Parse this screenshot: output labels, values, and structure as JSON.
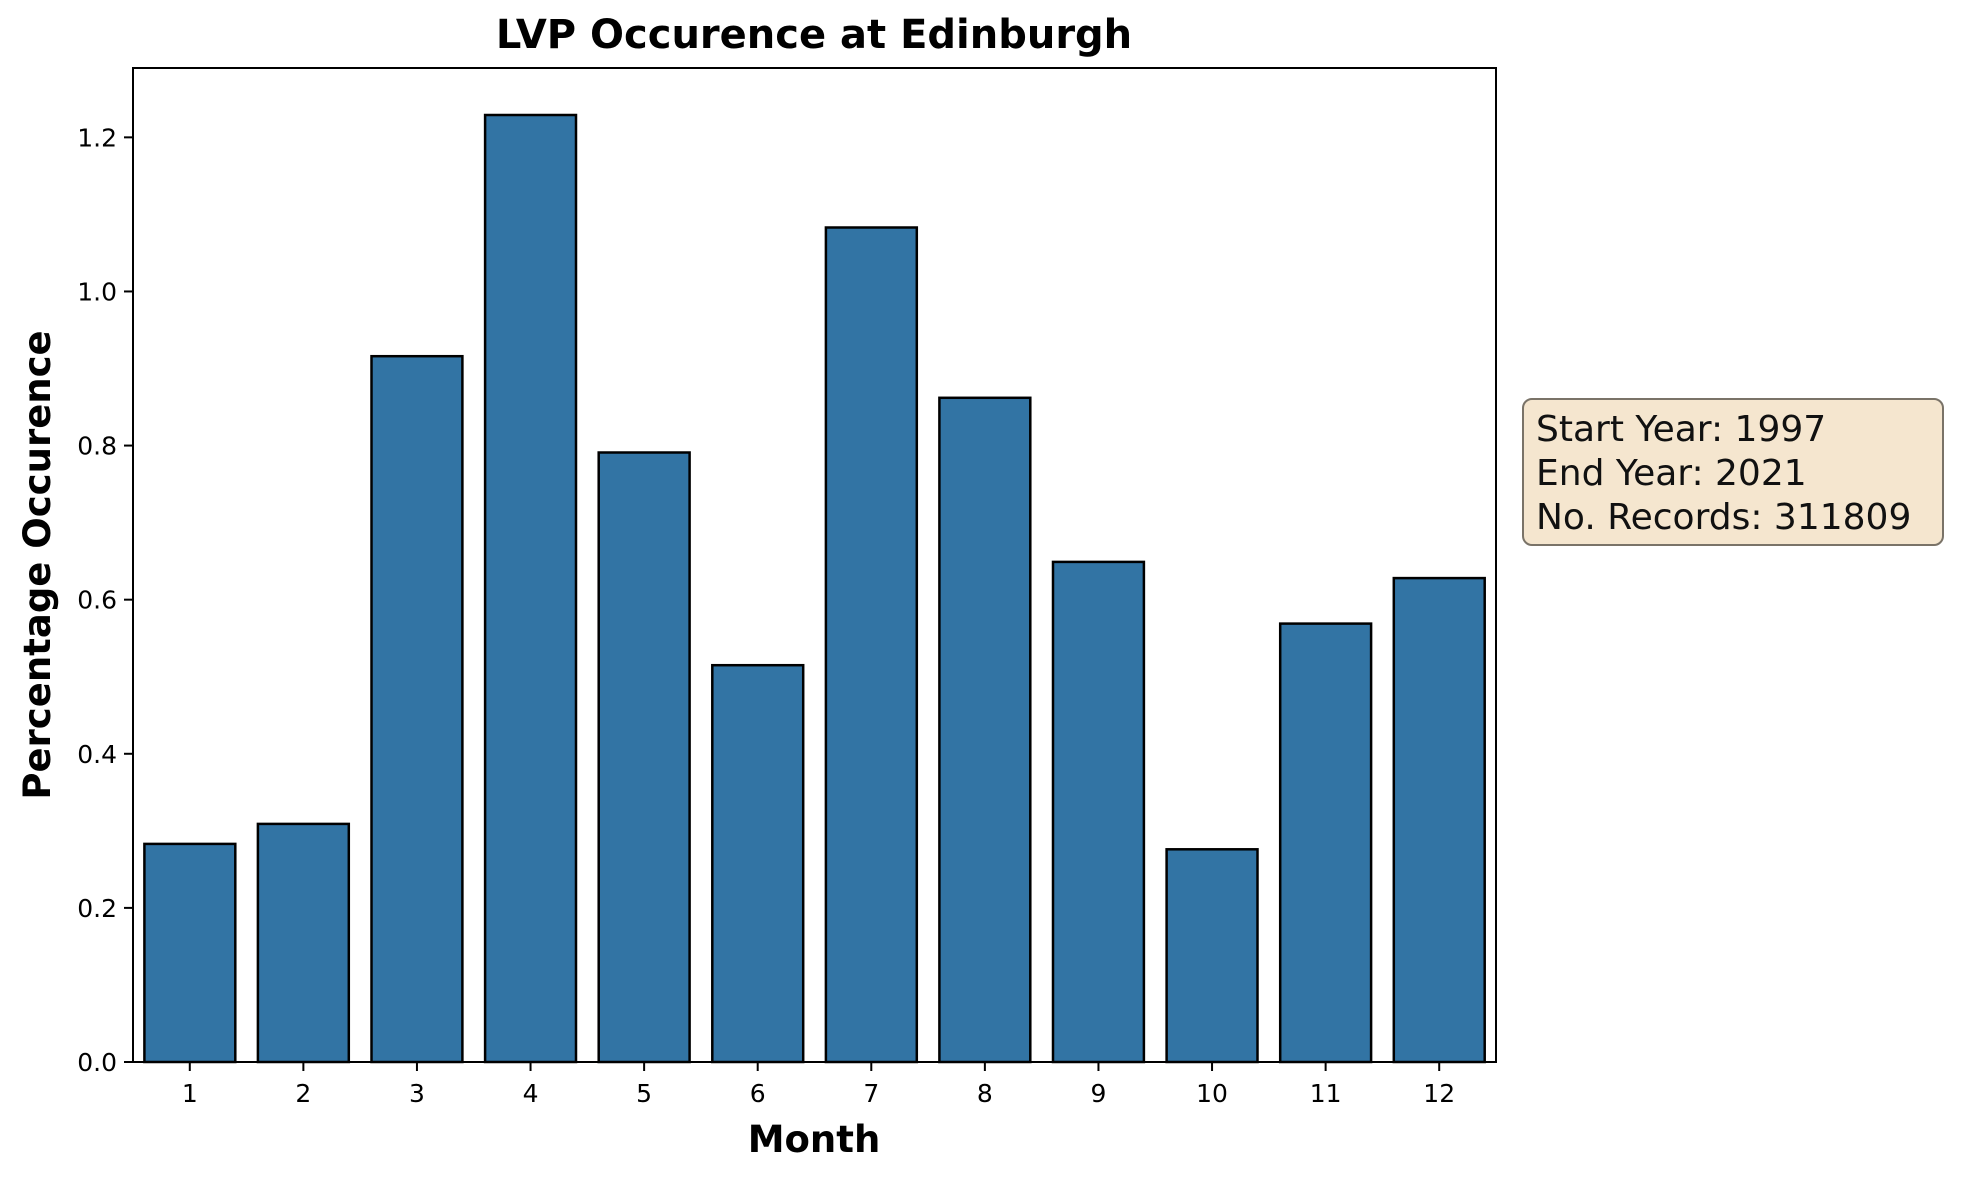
{
  "chart_data": {
    "type": "bar",
    "title": "LVP Occurence at Edinburgh",
    "xlabel": "Month",
    "ylabel": "Percentage Occurence",
    "categories": [
      "1",
      "2",
      "3",
      "4",
      "5",
      "6",
      "7",
      "8",
      "9",
      "10",
      "11",
      "12"
    ],
    "values": [
      0.283,
      0.309,
      0.916,
      1.229,
      0.791,
      0.515,
      1.083,
      0.862,
      0.649,
      0.276,
      0.569,
      0.628
    ],
    "ylim": [
      0,
      1.29
    ],
    "yticks": [
      "0.0",
      "0.2",
      "0.4",
      "0.6",
      "0.8",
      "1.0",
      "1.2"
    ],
    "bar_color": "#3274a4",
    "edge_color": "#000000",
    "grid": false
  },
  "info_box": {
    "start_year": "Start Year: 1997",
    "end_year": "End Year: 2021",
    "records": "No. Records: 311809",
    "background": "#f5e6cf"
  }
}
